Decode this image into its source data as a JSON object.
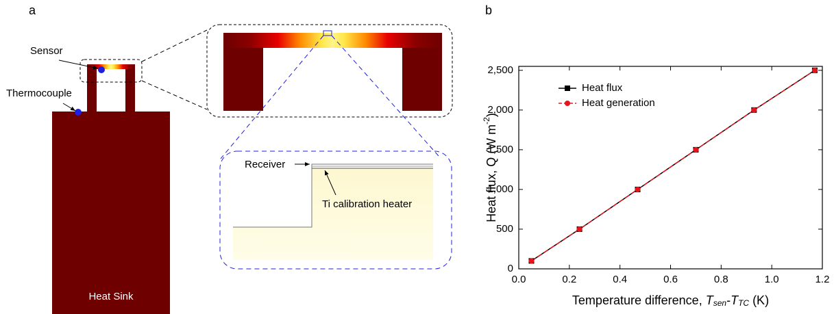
{
  "panel_labels": [
    "a",
    "b"
  ],
  "diagram": {
    "sensor": "Sensor",
    "thermocouple": "Thermocouple",
    "heat_sink": "Heat Sink",
    "receiver": "Receiver",
    "heater": "Ti calibration heater"
  },
  "chart_data": {
    "type": "line",
    "xlabel": [
      "Temperature difference, ",
      "T",
      "sen",
      "-",
      "T",
      "TC",
      " (K)"
    ],
    "ylabel": [
      "Heat flux, Q (W m",
      "-2",
      ")"
    ],
    "x": [
      0.05,
      0.24,
      0.47,
      0.7,
      0.93,
      1.17
    ],
    "series": [
      {
        "name": "Heat flux",
        "color": "#000000",
        "marker": "square",
        "dash": false,
        "values": [
          100,
          500,
          1000,
          1500,
          2000,
          2500
        ]
      },
      {
        "name": "Heat generation",
        "color": "#e8141c",
        "marker": "circle",
        "dash": true,
        "values": [
          100,
          500,
          1000,
          1500,
          2000,
          2500
        ]
      }
    ],
    "xlim": [
      0,
      1.2
    ],
    "xticks": [
      {
        "value": 0,
        "label": "0.0"
      },
      0.2,
      0.4,
      0.6,
      0.8,
      {
        "value": 1,
        "label": "1.0"
      },
      1.2
    ],
    "ylim": [
      0,
      2550
    ],
    "yticks": [
      0,
      500,
      {
        "value": 1000,
        "label": "1,000"
      },
      {
        "value": 1500,
        "label": "1,500"
      },
      {
        "value": 2000,
        "label": "2,000"
      },
      {
        "value": 2500,
        "label": "2,500"
      }
    ],
    "legend": "upper left"
  }
}
